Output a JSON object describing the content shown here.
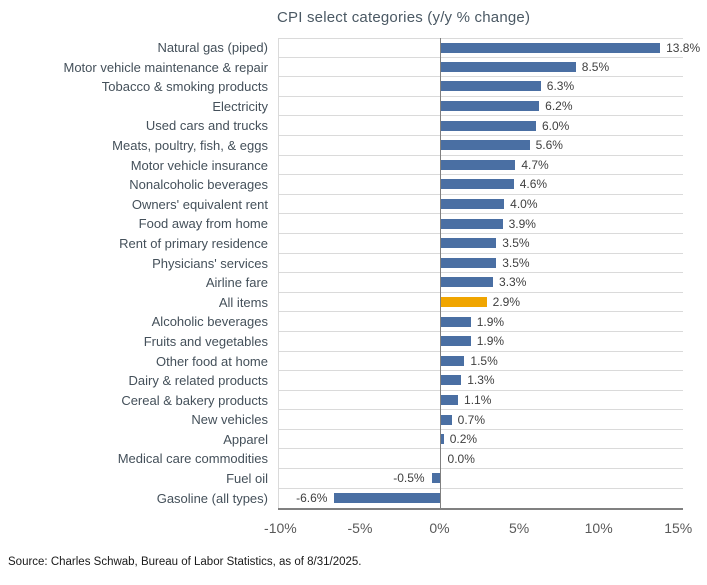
{
  "chart_data": {
    "type": "bar",
    "orientation": "horizontal",
    "title": "CPI select categories (y/y % change)",
    "categories": [
      "Natural gas (piped)",
      "Motor vehicle maintenance & repair",
      "Tobacco & smoking products",
      "Electricity",
      "Used cars and trucks",
      "Meats, poultry, fish, & eggs",
      "Motor vehicle insurance",
      "Nonalcoholic beverages",
      "Owners' equivalent rent",
      "Food away from home",
      "Rent of primary residence",
      "Physicians' services",
      "Airline fare",
      "All items",
      "Alcoholic beverages",
      "Fruits and vegetables",
      "Other food at home",
      "Dairy & related products",
      "Cereal & bakery products",
      "New vehicles",
      "Apparel",
      "Medical care commodities",
      "Fuel oil",
      "Gasoline (all types)"
    ],
    "values": [
      13.8,
      8.5,
      6.3,
      6.2,
      6.0,
      5.6,
      4.7,
      4.6,
      4.0,
      3.9,
      3.5,
      3.5,
      3.3,
      2.9,
      1.9,
      1.9,
      1.5,
      1.3,
      1.1,
      0.7,
      0.2,
      0.0,
      -0.5,
      -6.6
    ],
    "value_labels": [
      "13.8%",
      "8.5%",
      "6.3%",
      "6.2%",
      "6.0%",
      "5.6%",
      "4.7%",
      "4.6%",
      "4.0%",
      "3.9%",
      "3.5%",
      "3.5%",
      "3.3%",
      "2.9%",
      "1.9%",
      "1.9%",
      "1.5%",
      "1.3%",
      "1.1%",
      "0.7%",
      "0.2%",
      "0.0%",
      "-0.5%",
      "-6.6%"
    ],
    "highlight_category": "All items",
    "highlight_index": 13,
    "bar_color": "#4a6fa3",
    "highlight_color": "#f0a500",
    "x_ticks": [
      {
        "label": "-10%",
        "value": -10
      },
      {
        "label": "-5%",
        "value": -5
      },
      {
        "label": "0%",
        "value": 0
      },
      {
        "label": "5%",
        "value": 5
      },
      {
        "label": "10%",
        "value": 10
      },
      {
        "label": "15%",
        "value": 15
      }
    ],
    "xlim": [
      -10.15,
      15.3
    ],
    "grid": "horizontal-row-separators",
    "legend": "none"
  },
  "source": "Source: Charles Schwab, Bureau of Labor Statistics, as of 8/31/2025."
}
